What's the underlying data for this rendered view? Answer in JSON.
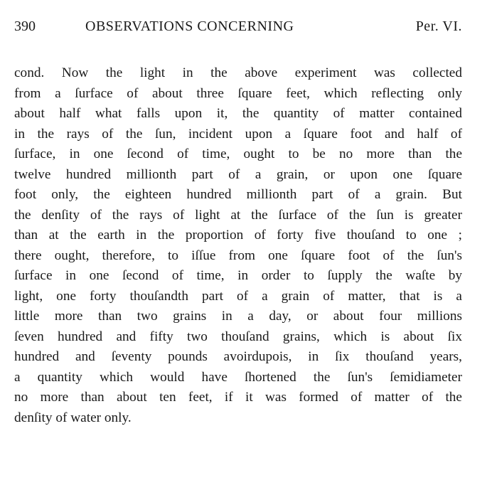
{
  "header": {
    "page_number": "390",
    "running_title": "OBSERVATIONS CONCERNING",
    "section": "Per. VI."
  },
  "lines": [
    "cond.  Now the light in the above experiment was collected",
    "from a ſurface of about three ſquare feet, which reflecting only",
    "about half what falls upon it, the quantity of matter contained",
    "in the rays of the ſun, incident upon a ſquare foot and half of",
    "ſurface, in one ſecond of time, ought to be no more than the",
    "twelve hundred millionth part of a grain, or upon one ſquare",
    "foot only, the eighteen hundred millionth part of a grain.  But",
    "the denſity of the rays of light at the ſurface of the ſun is greater",
    "than at the earth in the proportion of forty five thouſand to one ;",
    "there ought, therefore, to iſſue from one ſquare foot of the ſun's",
    "ſurface in one ſecond of time, in order to ſupply the waſte by",
    "light, one forty thouſandth part of a grain of matter, that is a",
    "little more than two grains in a day, or about four millions",
    "ſeven hundred and fifty two thouſand grains, which is about ſix",
    "hundred and ſeventy pounds avoirdupois, in ſix thouſand years,",
    "a quantity which would have ſhortened the ſun's ſemidiameter",
    "no more than about ten feet, if it was formed of matter of the",
    "denſity of water only."
  ]
}
